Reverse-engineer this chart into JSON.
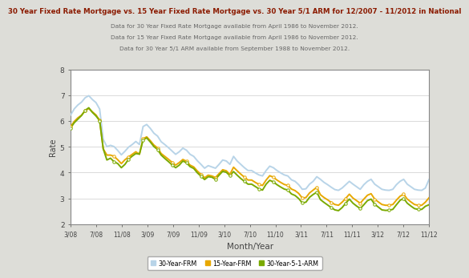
{
  "title": "30 Year Fixed Rate Mortgage vs. 15 Year Fixed Rate Mortgage vs. 30 Year 5/1 ARM for 12/2007 - 11/2012 in National",
  "subtitle1": "Data for 30 Year Fixed Rate Mortgage available from April 1986 to November 2012.",
  "subtitle2": "Data for 15 Year Fixed Rate Mortgage available from April 1986 to November 2012.",
  "subtitle3": "Data for 30 Year 5/1 ARM available from September 1988 to November 2012.",
  "xlabel": "Month/Year",
  "ylabel": "Rate",
  "ylim": [
    2,
    8
  ],
  "yticks": [
    2,
    3,
    4,
    5,
    6,
    7,
    8
  ],
  "xtick_labels": [
    "3/08",
    "7/08",
    "11/08",
    "3/09",
    "7/09",
    "11/09",
    "3/10",
    "7/10",
    "11/10",
    "3/11",
    "7/11",
    "11/11",
    "3/12",
    "7/12",
    "11/12"
  ],
  "background_color": "#ddddd8",
  "plot_bg_color": "#ffffff",
  "title_color": "#8b1a00",
  "subtitle_color": "#666666",
  "color_30frm": "#b8d4e8",
  "color_15frm": "#e8a800",
  "color_arm": "#7aaa00",
  "legend_labels": [
    "30-Year-FRM",
    "15-Year-FRM",
    "30-Year-5-1-ARM"
  ],
  "frm30": [
    6.24,
    6.48,
    6.63,
    6.74,
    6.91,
    6.99,
    6.84,
    6.72,
    6.47,
    5.29,
    5.01,
    5.06,
    5.01,
    4.86,
    4.69,
    4.83,
    4.99,
    5.09,
    5.21,
    5.09,
    5.79,
    5.87,
    5.72,
    5.53,
    5.42,
    5.2,
    5.09,
    4.97,
    4.84,
    4.71,
    4.81,
    4.95,
    4.87,
    4.71,
    4.63,
    4.46,
    4.32,
    4.17,
    4.27,
    4.22,
    4.17,
    4.32,
    4.49,
    4.45,
    4.32,
    4.63,
    4.45,
    4.32,
    4.19,
    4.08,
    4.08,
    3.99,
    3.91,
    3.87,
    4.08,
    4.25,
    4.19,
    4.08,
    3.99,
    3.91,
    3.87,
    3.72,
    3.66,
    3.53,
    3.35,
    3.37,
    3.55,
    3.66,
    3.84,
    3.74,
    3.62,
    3.53,
    3.43,
    3.34,
    3.31,
    3.4,
    3.53,
    3.66,
    3.55,
    3.45,
    3.35,
    3.53,
    3.66,
    3.74,
    3.55,
    3.45,
    3.35,
    3.32,
    3.31,
    3.35,
    3.53,
    3.66,
    3.74,
    3.55,
    3.45,
    3.35,
    3.32,
    3.31,
    3.4,
    3.73
  ],
  "frm15": [
    5.79,
    5.99,
    6.13,
    6.23,
    6.41,
    6.49,
    6.36,
    6.24,
    6.03,
    4.92,
    4.68,
    4.68,
    4.63,
    4.5,
    4.35,
    4.5,
    4.61,
    4.71,
    4.81,
    4.71,
    5.31,
    5.39,
    5.24,
    5.07,
    4.96,
    4.74,
    4.63,
    4.52,
    4.4,
    4.29,
    4.39,
    4.51,
    4.44,
    4.29,
    4.22,
    4.06,
    3.93,
    3.8,
    3.9,
    3.87,
    3.81,
    3.96,
    4.11,
    4.07,
    3.93,
    4.21,
    4.07,
    3.94,
    3.82,
    3.71,
    3.71,
    3.62,
    3.54,
    3.5,
    3.71,
    3.88,
    3.82,
    3.71,
    3.62,
    3.54,
    3.5,
    3.36,
    3.3,
    3.19,
    3.01,
    3.03,
    3.21,
    3.32,
    3.43,
    3.14,
    3.03,
    2.94,
    2.84,
    2.76,
    2.73,
    2.85,
    3.0,
    3.16,
    3.01,
    2.91,
    2.81,
    2.97,
    3.12,
    3.18,
    2.97,
    2.86,
    2.76,
    2.73,
    2.73,
    2.76,
    2.93,
    3.08,
    3.16,
    2.97,
    2.86,
    2.76,
    2.73,
    2.73,
    2.85,
    3.02
  ],
  "arm30": [
    5.74,
    5.94,
    6.08,
    6.22,
    6.42,
    6.52,
    6.34,
    6.2,
    6.02,
    4.92,
    4.49,
    4.56,
    4.42,
    4.35,
    4.19,
    4.32,
    4.52,
    4.64,
    4.74,
    4.72,
    5.27,
    5.35,
    5.19,
    5.01,
    4.9,
    4.68,
    4.55,
    4.43,
    4.3,
    4.19,
    4.29,
    4.45,
    4.38,
    4.23,
    4.16,
    3.99,
    3.86,
    3.73,
    3.84,
    3.82,
    3.74,
    3.9,
    4.05,
    4.01,
    3.88,
    4.04,
    3.9,
    3.77,
    3.66,
    3.55,
    3.55,
    3.46,
    3.37,
    3.32,
    3.55,
    3.7,
    3.64,
    3.53,
    3.44,
    3.36,
    3.32,
    3.17,
    3.11,
    2.99,
    2.82,
    2.85,
    3.04,
    3.15,
    3.24,
    2.95,
    2.84,
    2.74,
    2.64,
    2.55,
    2.52,
    2.64,
    2.81,
    2.97,
    2.81,
    2.7,
    2.6,
    2.75,
    2.91,
    2.97,
    2.77,
    2.66,
    2.55,
    2.53,
    2.54,
    2.57,
    2.75,
    2.92,
    3.0,
    2.81,
    2.7,
    2.6,
    2.57,
    2.57,
    2.69,
    2.75
  ]
}
